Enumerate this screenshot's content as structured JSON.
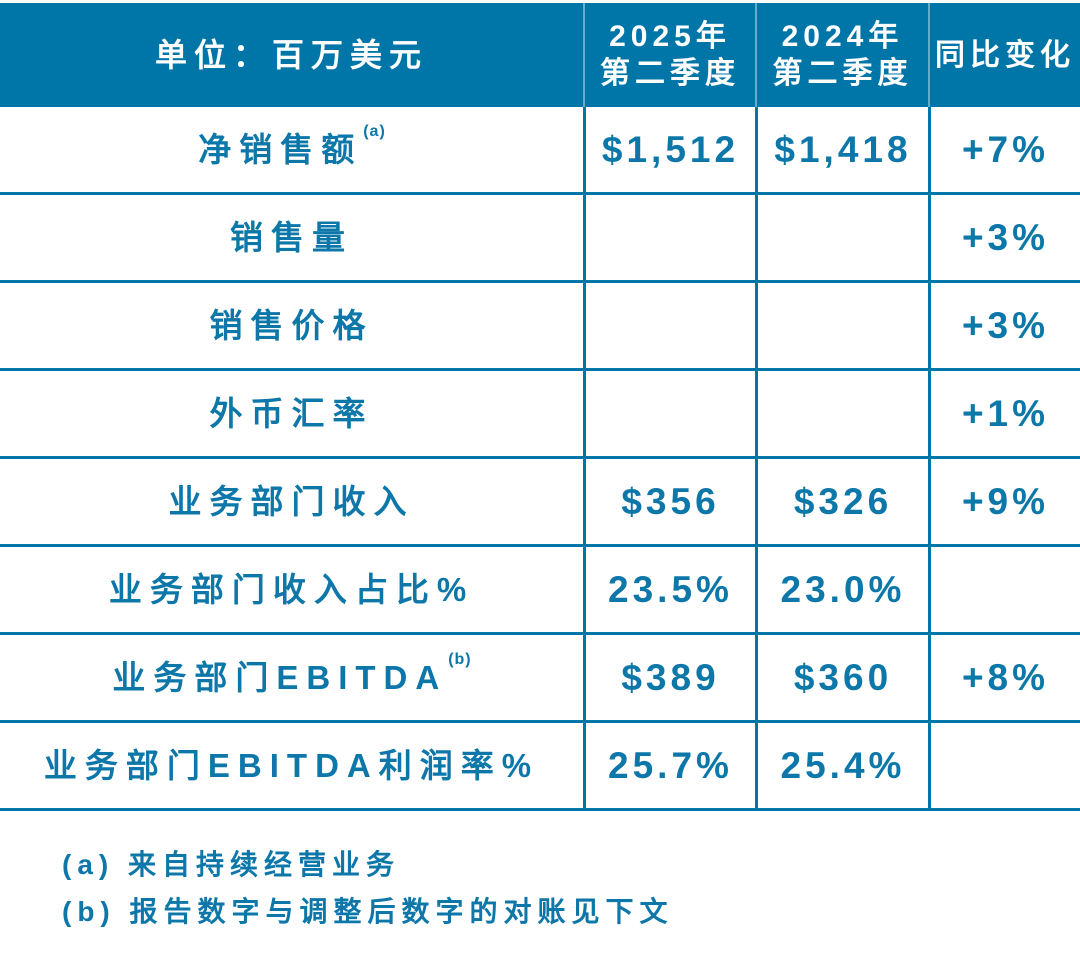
{
  "colors": {
    "accent": "#0076a8",
    "text": "#0c77a8",
    "header_divider": "rgba(255,255,255,0.4)"
  },
  "header": {
    "unit_label": "单位：百万美元",
    "columns": [
      {
        "line1": "2025年",
        "line2": "第二季度"
      },
      {
        "line1": "2024年",
        "line2": "第二季度"
      },
      {
        "line1": "同比变化",
        "line2": ""
      }
    ]
  },
  "rows": [
    {
      "label": "净销售额",
      "sup": "(a)",
      "q2_2025": "$1,512",
      "q2_2024": "$1,418",
      "yoy": "+7%"
    },
    {
      "label": "销售量",
      "sup": "",
      "q2_2025": "",
      "q2_2024": "",
      "yoy": "+3%"
    },
    {
      "label": "销售价格",
      "sup": "",
      "q2_2025": "",
      "q2_2024": "",
      "yoy": "+3%"
    },
    {
      "label": "外币汇率",
      "sup": "",
      "q2_2025": "",
      "q2_2024": "",
      "yoy": "+1%"
    },
    {
      "label": "业务部门收入",
      "sup": "",
      "q2_2025": "$356",
      "q2_2024": "$326",
      "yoy": "+9%"
    },
    {
      "label": "业务部门收入占比%",
      "sup": "",
      "q2_2025": "23.5%",
      "q2_2024": "23.0%",
      "yoy": ""
    },
    {
      "label": "业务部门EBITDA",
      "sup": "(b)",
      "q2_2025": "$389",
      "q2_2024": "$360",
      "yoy": "+8%"
    },
    {
      "label": "业务部门EBITDA利润率%",
      "sup": "",
      "q2_2025": "25.7%",
      "q2_2024": "25.4%",
      "yoy": ""
    }
  ],
  "footnotes": [
    "(a) 来自持续经营业务",
    "(b) 报告数字与调整后数字的对账见下文"
  ],
  "chart_data": {
    "type": "table",
    "title": "单位：百万美元",
    "columns": [
      "单位：百万美元",
      "2025年第二季度",
      "2024年第二季度",
      "同比变化"
    ],
    "rows": [
      [
        "净销售额(a)",
        "$1,512",
        "$1,418",
        "+7%"
      ],
      [
        "销售量",
        "",
        "",
        "+3%"
      ],
      [
        "销售价格",
        "",
        "",
        "+3%"
      ],
      [
        "外币汇率",
        "",
        "",
        "+1%"
      ],
      [
        "业务部门收入",
        "$356",
        "$326",
        "+9%"
      ],
      [
        "业务部门收入占比%",
        "23.5%",
        "23.0%",
        ""
      ],
      [
        "业务部门EBITDA(b)",
        "$389",
        "$360",
        "+8%"
      ],
      [
        "业务部门EBITDA利润率%",
        "25.7%",
        "25.4%",
        ""
      ]
    ],
    "footnotes": [
      "(a) 来自持续经营业务",
      "(b) 报告数字与调整后数字的对账见下文"
    ],
    "layout_hints": {
      "header_background": "#0076a8",
      "grid": "on",
      "accent": "#0076a8"
    }
  }
}
